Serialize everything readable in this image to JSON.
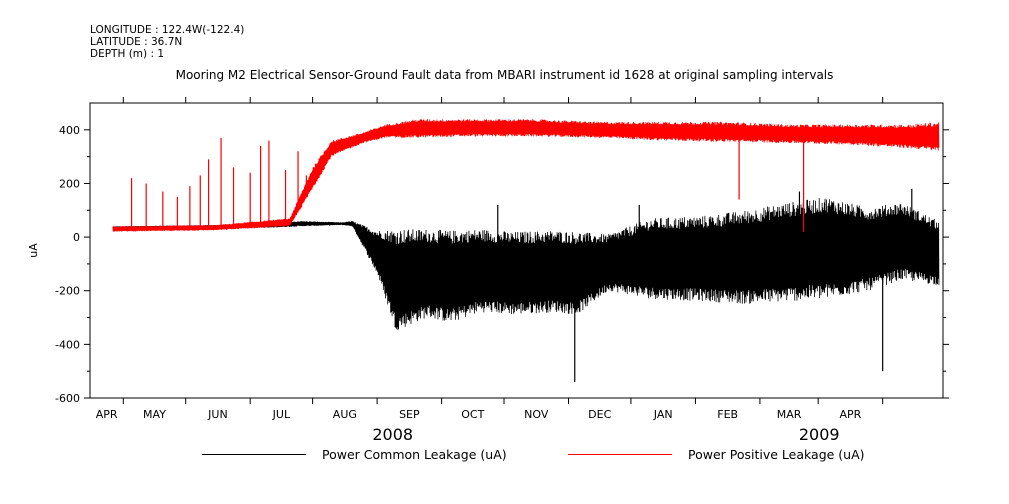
{
  "header": {
    "longitude": "LONGITUDE : 122.4W(-122.4)",
    "latitude": "LATITUDE : 36.7N",
    "depth": "DEPTH (m) : 1"
  },
  "chart_data": {
    "type": "line",
    "title": "Mooring M2 Electrical Sensor-Ground Fault data from MBARI instrument id 1628 at original sampling intervals",
    "ylabel": "uA",
    "xlabel": "",
    "ylim": [
      -600,
      500
    ],
    "yticks": [
      -600,
      -400,
      -200,
      0,
      200,
      400
    ],
    "xlim": [
      "2008-03-16",
      "2009-04-30"
    ],
    "month_ticks": [
      "APR",
      "MAY",
      "JUN",
      "JUL",
      "AUG",
      "SEP",
      "OCT",
      "NOV",
      "DEC",
      "JAN",
      "FEB",
      "MAR",
      "APR"
    ],
    "year_labels": [
      "2008",
      "2009"
    ],
    "grid": false,
    "legend_position": "bottom",
    "series": [
      {
        "name": "Power Common Leakage (uA)",
        "color": "#000000",
        "envelope": [
          {
            "date": "2008-03-27",
            "low": 30,
            "high": 40
          },
          {
            "date": "2008-05-15",
            "low": 35,
            "high": 45
          },
          {
            "date": "2008-06-10",
            "low": 35,
            "high": 50
          },
          {
            "date": "2008-06-25",
            "low": 40,
            "high": 60
          },
          {
            "date": "2008-07-15",
            "low": 45,
            "high": 55
          },
          {
            "date": "2008-07-20",
            "low": 40,
            "high": 60
          },
          {
            "date": "2008-08-01",
            "low": -140,
            "high": 25
          },
          {
            "date": "2008-08-10",
            "low": -350,
            "high": 30
          },
          {
            "date": "2008-08-25",
            "low": -300,
            "high": 30
          },
          {
            "date": "2008-09-05",
            "low": -320,
            "high": 25
          },
          {
            "date": "2008-09-20",
            "low": -280,
            "high": 30
          },
          {
            "date": "2008-10-05",
            "low": -290,
            "high": 20
          },
          {
            "date": "2008-10-25",
            "low": -280,
            "high": 25
          },
          {
            "date": "2008-11-05",
            "low": -290,
            "high": 20
          },
          {
            "date": "2008-11-20",
            "low": -200,
            "high": 10
          },
          {
            "date": "2008-12-10",
            "low": -230,
            "high": 70
          },
          {
            "date": "2009-01-05",
            "low": -240,
            "high": 80
          },
          {
            "date": "2009-01-25",
            "low": -250,
            "high": 100
          },
          {
            "date": "2009-02-15",
            "low": -240,
            "high": 130
          },
          {
            "date": "2009-03-05",
            "low": -230,
            "high": 150
          },
          {
            "date": "2009-03-25",
            "low": -200,
            "high": 110
          },
          {
            "date": "2009-04-10",
            "low": -160,
            "high": 130
          },
          {
            "date": "2009-04-28",
            "low": -180,
            "high": 60
          }
        ],
        "spikes": [
          {
            "date": "2008-11-04",
            "value": -540
          },
          {
            "date": "2009-04-01",
            "value": -500
          },
          {
            "date": "2008-09-28",
            "value": 120
          },
          {
            "date": "2008-12-05",
            "value": 120
          },
          {
            "date": "2009-02-20",
            "value": 170
          },
          {
            "date": "2009-04-15",
            "value": 180
          }
        ]
      },
      {
        "name": "Power Positive Leakage (uA)",
        "color": "#ff0000",
        "envelope": [
          {
            "date": "2008-03-27",
            "low": 20,
            "high": 40
          },
          {
            "date": "2008-05-15",
            "low": 25,
            "high": 45
          },
          {
            "date": "2008-06-20",
            "low": 40,
            "high": 70
          },
          {
            "date": "2008-07-01",
            "low": 180,
            "high": 260
          },
          {
            "date": "2008-07-10",
            "low": 300,
            "high": 360
          },
          {
            "date": "2008-07-25",
            "low": 350,
            "high": 390
          },
          {
            "date": "2008-08-05",
            "low": 370,
            "high": 420
          },
          {
            "date": "2008-08-20",
            "low": 370,
            "high": 440
          },
          {
            "date": "2008-09-15",
            "low": 375,
            "high": 440
          },
          {
            "date": "2008-10-15",
            "low": 375,
            "high": 440
          },
          {
            "date": "2008-11-15",
            "low": 370,
            "high": 430
          },
          {
            "date": "2008-12-15",
            "low": 360,
            "high": 430
          },
          {
            "date": "2009-01-15",
            "low": 355,
            "high": 430
          },
          {
            "date": "2009-02-15",
            "low": 350,
            "high": 420
          },
          {
            "date": "2009-03-15",
            "low": 345,
            "high": 420
          },
          {
            "date": "2009-04-15",
            "low": 330,
            "high": 420
          },
          {
            "date": "2009-04-28",
            "low": 320,
            "high": 430
          }
        ],
        "bursts": [
          {
            "date": "2008-04-05",
            "value": 220
          },
          {
            "date": "2008-04-12",
            "value": 200
          },
          {
            "date": "2008-04-20",
            "value": 170
          },
          {
            "date": "2008-04-27",
            "value": 150
          },
          {
            "date": "2008-05-03",
            "value": 190
          },
          {
            "date": "2008-05-08",
            "value": 230
          },
          {
            "date": "2008-05-12",
            "value": 290
          },
          {
            "date": "2008-05-18",
            "value": 370
          },
          {
            "date": "2008-05-24",
            "value": 260
          },
          {
            "date": "2008-06-01",
            "value": 240
          },
          {
            "date": "2008-06-06",
            "value": 340
          },
          {
            "date": "2008-06-10",
            "value": 360
          },
          {
            "date": "2008-06-18",
            "value": 250
          },
          {
            "date": "2008-06-24",
            "value": 320
          },
          {
            "date": "2008-06-28",
            "value": 230
          }
        ],
        "drops": [
          {
            "date": "2009-01-22",
            "value": 140
          },
          {
            "date": "2009-02-22",
            "value": 20
          }
        ]
      }
    ]
  }
}
